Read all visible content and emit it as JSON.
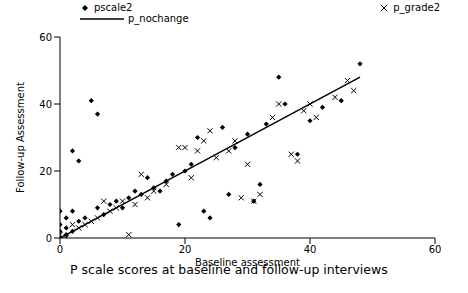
{
  "chart_data": {
    "type": "scatter",
    "title": "P scale scores at baseline and follow-up interviews",
    "x_label": "Baseline assessment",
    "y_label": "Follow-up Assessment",
    "xlim": [
      0,
      60
    ],
    "xticks": [
      0,
      20,
      40,
      60
    ],
    "ylim": [
      0,
      60
    ],
    "yticks": [
      0,
      20,
      40,
      60
    ],
    "grid": false,
    "legend": "top",
    "series": [
      {
        "name": "pscale2",
        "type": "scatter",
        "marker": "diamond",
        "color": "#000000",
        "x": [
          0,
          0,
          0,
          0,
          1,
          1,
          1,
          2,
          2,
          2,
          3,
          3,
          4,
          5,
          6,
          6,
          7,
          8,
          9,
          10,
          11,
          12,
          13,
          14,
          15,
          16,
          17,
          18,
          19,
          20,
          21,
          22,
          23,
          24,
          26,
          27,
          28,
          30,
          31,
          32,
          33,
          35,
          36,
          38,
          40,
          42,
          45,
          48
        ],
        "values": [
          0,
          2,
          4,
          8,
          1,
          3,
          6,
          2,
          8,
          26,
          23,
          5,
          6,
          41,
          37,
          9,
          7,
          10,
          11,
          9,
          12,
          14,
          13,
          18,
          15,
          14,
          17,
          19,
          4,
          20,
          22,
          30,
          8,
          6,
          33,
          13,
          27,
          31,
          11,
          16,
          34,
          48,
          40,
          25,
          35,
          39,
          41,
          52
        ]
      },
      {
        "name": "p_grade2",
        "type": "scatter",
        "marker": "cross",
        "color": "#000000",
        "x": [
          0,
          1,
          2,
          3,
          4,
          5,
          6,
          7,
          8,
          9,
          10,
          11,
          12,
          13,
          14,
          15,
          17,
          19,
          20,
          21,
          22,
          23,
          24,
          25,
          27,
          28,
          29,
          30,
          31,
          32,
          34,
          35,
          37,
          38,
          39,
          40,
          41,
          44,
          46,
          47
        ],
        "values": [
          1,
          0,
          4,
          3,
          4,
          5,
          6,
          11,
          8,
          9,
          11,
          1,
          10,
          19,
          12,
          14,
          16,
          27,
          27,
          18,
          26,
          29,
          32,
          24,
          26,
          29,
          12,
          22,
          11,
          13,
          36,
          40,
          25,
          23,
          38,
          40,
          36,
          42,
          47,
          44
        ]
      },
      {
        "name": "p_nochange",
        "type": "line",
        "line_style": "solid",
        "color": "#000000",
        "x": [
          0,
          48
        ],
        "values": [
          0,
          48
        ]
      }
    ]
  }
}
